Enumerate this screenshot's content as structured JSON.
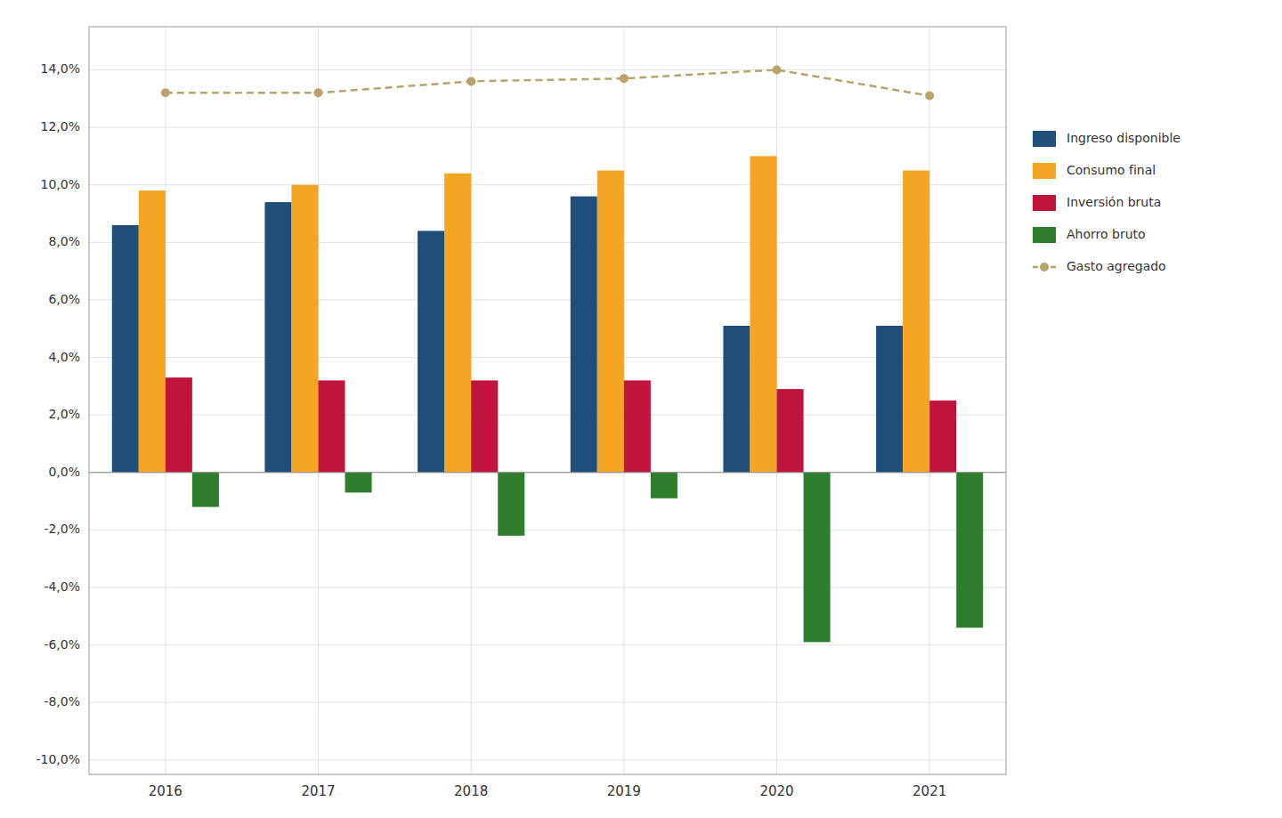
{
  "chart_data": {
    "type": "bar",
    "categories": [
      "2016",
      "2017",
      "2018",
      "2019",
      "2020",
      "2021"
    ],
    "series": [
      {
        "name": "Ingreso disponible",
        "color": "#1f4e79",
        "values": [
          8.6,
          9.4,
          8.4,
          9.6,
          5.1,
          5.1
        ]
      },
      {
        "name": "Consumo final",
        "color": "#f4a523",
        "values": [
          9.8,
          10.0,
          10.4,
          10.5,
          11.0,
          10.5
        ]
      },
      {
        "name": "Inversión bruta",
        "color": "#c0143c",
        "values": [
          3.3,
          3.2,
          3.2,
          3.2,
          2.9,
          2.5
        ]
      },
      {
        "name": "Ahorro bruto",
        "color": "#2d7d2d",
        "values": [
          -1.2,
          -0.7,
          -2.2,
          -0.9,
          -5.9,
          -5.4
        ]
      },
      {
        "name": "Gasto agregado",
        "color": "#b8a46a",
        "type": "line",
        "line_style": "dashed",
        "marker": "circle",
        "values": [
          13.2,
          13.2,
          13.6,
          13.7,
          14.0,
          13.1
        ]
      }
    ],
    "ylim": [
      -10.5,
      15.5
    ],
    "yticks": [
      {
        "value": -10.0,
        "label": "-10,0%"
      },
      {
        "value": -8.0,
        "label": "-8,0%"
      },
      {
        "value": -6.0,
        "label": "-6,0%"
      },
      {
        "value": -4.0,
        "label": "-4,0%"
      },
      {
        "value": -2.0,
        "label": "-2,0%"
      },
      {
        "value": 0.0,
        "label": "0,0%"
      },
      {
        "value": 2.0,
        "label": "2,0%"
      },
      {
        "value": 4.0,
        "label": "4,0%"
      },
      {
        "value": 6.0,
        "label": "6,0%"
      },
      {
        "value": 8.0,
        "label": "8,0%"
      },
      {
        "value": 10.0,
        "label": "10,0%"
      },
      {
        "value": 12.0,
        "label": "12,0%"
      },
      {
        "value": 14.0,
        "label": "14,0%"
      }
    ],
    "grid": true,
    "legend": "right"
  }
}
